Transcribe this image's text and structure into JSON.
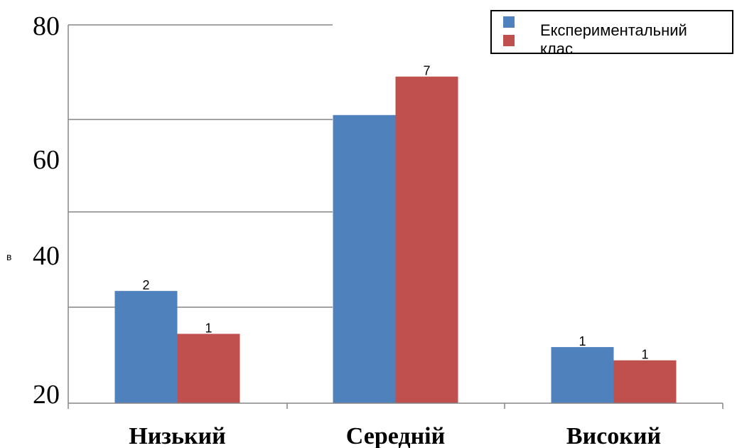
{
  "chart_data": {
    "type": "bar",
    "categories": [
      "Низький",
      "Середній",
      "Високий"
    ],
    "series": [
      {
        "name": "Експериментальний клас",
        "color": "#4F81BD",
        "values": [
          37.8,
          65.7,
          28.9
        ],
        "labels": [
          "2",
          "",
          "1"
        ]
      },
      {
        "color": "#C0504D",
        "values": [
          31.0,
          71.8,
          26.8
        ],
        "labels": [
          "1",
          "7",
          "1"
        ]
      }
    ],
    "yticks": [
      "20",
      "40",
      "60",
      "80"
    ],
    "ylim": [
      20,
      80
    ],
    "ylabel": "в",
    "legend": {
      "entries": [
        "Експериментальний",
        "клас"
      ],
      "placement": "top-right"
    },
    "grid": true
  }
}
